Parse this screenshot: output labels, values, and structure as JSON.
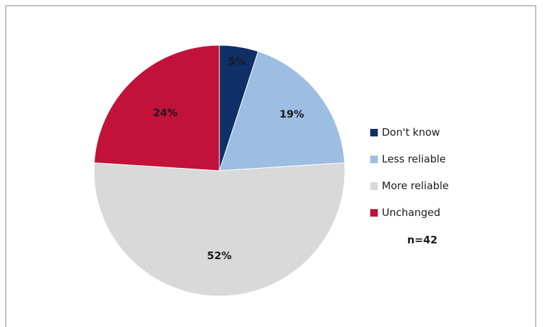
{
  "chart_data": {
    "type": "pie",
    "slices": [
      {
        "label": "Don't know",
        "value": 5,
        "value_label": "5%",
        "color": "#0f2f66"
      },
      {
        "label": "Less reliable",
        "value": 19,
        "value_label": "19%",
        "color": "#9dbde3"
      },
      {
        "label": "More reliable",
        "value": 52,
        "value_label": "52%",
        "color": "#d9d9d9"
      },
      {
        "label": "Unchanged",
        "value": 24,
        "value_label": "24%",
        "color": "#c2123a"
      }
    ],
    "legend_position": "right",
    "sample_note": "n=42"
  }
}
